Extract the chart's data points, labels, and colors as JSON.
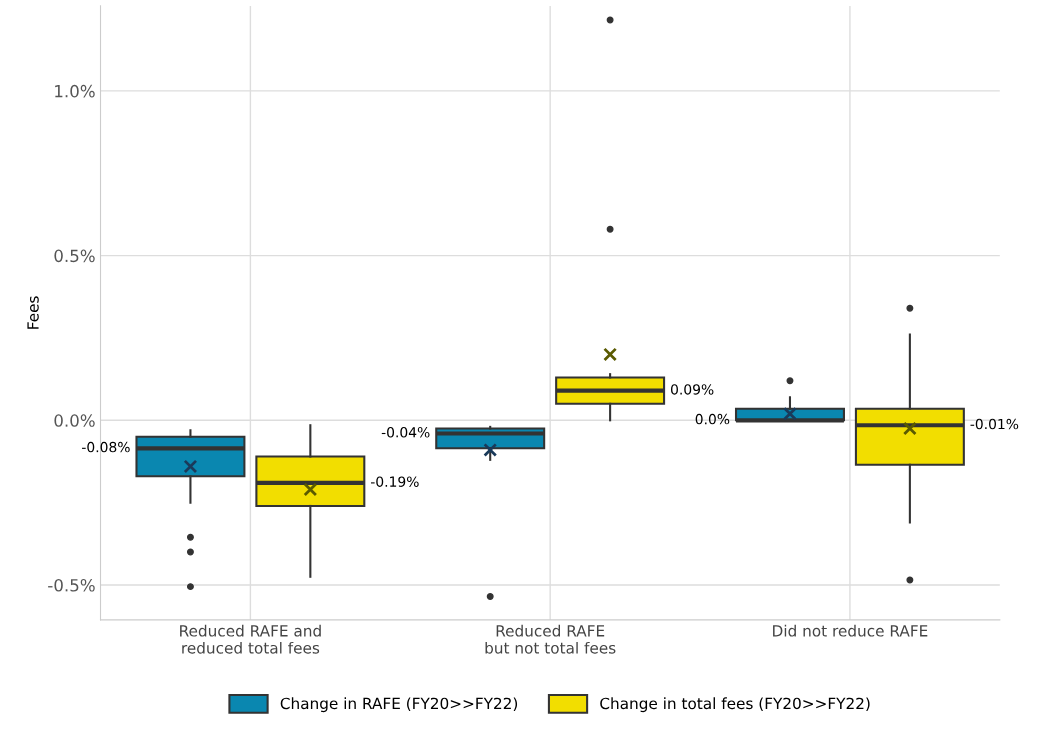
{
  "chart_data": {
    "type": "box",
    "ylabel": "Fees",
    "categories": [
      "Reduced RAFE and\nreduced total fees",
      "Reduced RAFE\nbut not total fees",
      "Did not reduce RAFE"
    ],
    "ylim": [
      -0.606,
      1.258
    ],
    "yticks": [
      {
        "value": -0.5,
        "label": "-0.5%"
      },
      {
        "value": 0,
        "label": "0.0%"
      },
      {
        "value": 0.5,
        "label": "0.5%"
      },
      {
        "value": 1.0,
        "label": "1.0%"
      }
    ],
    "grid": true,
    "legend": "bottom",
    "series": [
      {
        "name": "Change in RAFE (FY20>>FY22)",
        "color": "#0a87b0",
        "value_labels": [
          "-0.08%",
          "-0.04%",
          "0.0%"
        ],
        "boxes": [
          {
            "low": -0.25,
            "q1": -0.17,
            "median": -0.085,
            "q3": -0.05,
            "high": -0.03,
            "mean": -0.14,
            "outliers": [
              -0.355,
              -0.4,
              -0.505
            ]
          },
          {
            "low": -0.12,
            "q1": -0.085,
            "median": -0.04,
            "q3": -0.025,
            "high": -0.02,
            "mean": -0.09,
            "outliers": [
              -0.535
            ]
          },
          {
            "low": 0.0,
            "q1": 0.0,
            "median": 0.0,
            "q3": 0.035,
            "high": 0.07,
            "mean": 0.02,
            "outliers": [
              0.12
            ]
          }
        ]
      },
      {
        "name": "Change in total fees (FY20>>FY22)",
        "color": "#f2de00",
        "value_labels": [
          "-0.19%",
          "0.09%",
          "-0.01%"
        ],
        "boxes": [
          {
            "low": -0.475,
            "q1": -0.26,
            "median": -0.19,
            "q3": -0.11,
            "high": -0.015,
            "mean": -0.21
          },
          {
            "low": 0.0,
            "q1": 0.05,
            "median": 0.09,
            "q3": 0.13,
            "high": 0.14,
            "mean": 0.2,
            "outliers": [
              0.58,
              1.215
            ]
          },
          {
            "low": -0.31,
            "q1": -0.135,
            "median": -0.015,
            "q3": 0.035,
            "high": 0.26,
            "mean": -0.025,
            "outliers": [
              0.34,
              -0.485
            ]
          }
        ]
      }
    ]
  }
}
